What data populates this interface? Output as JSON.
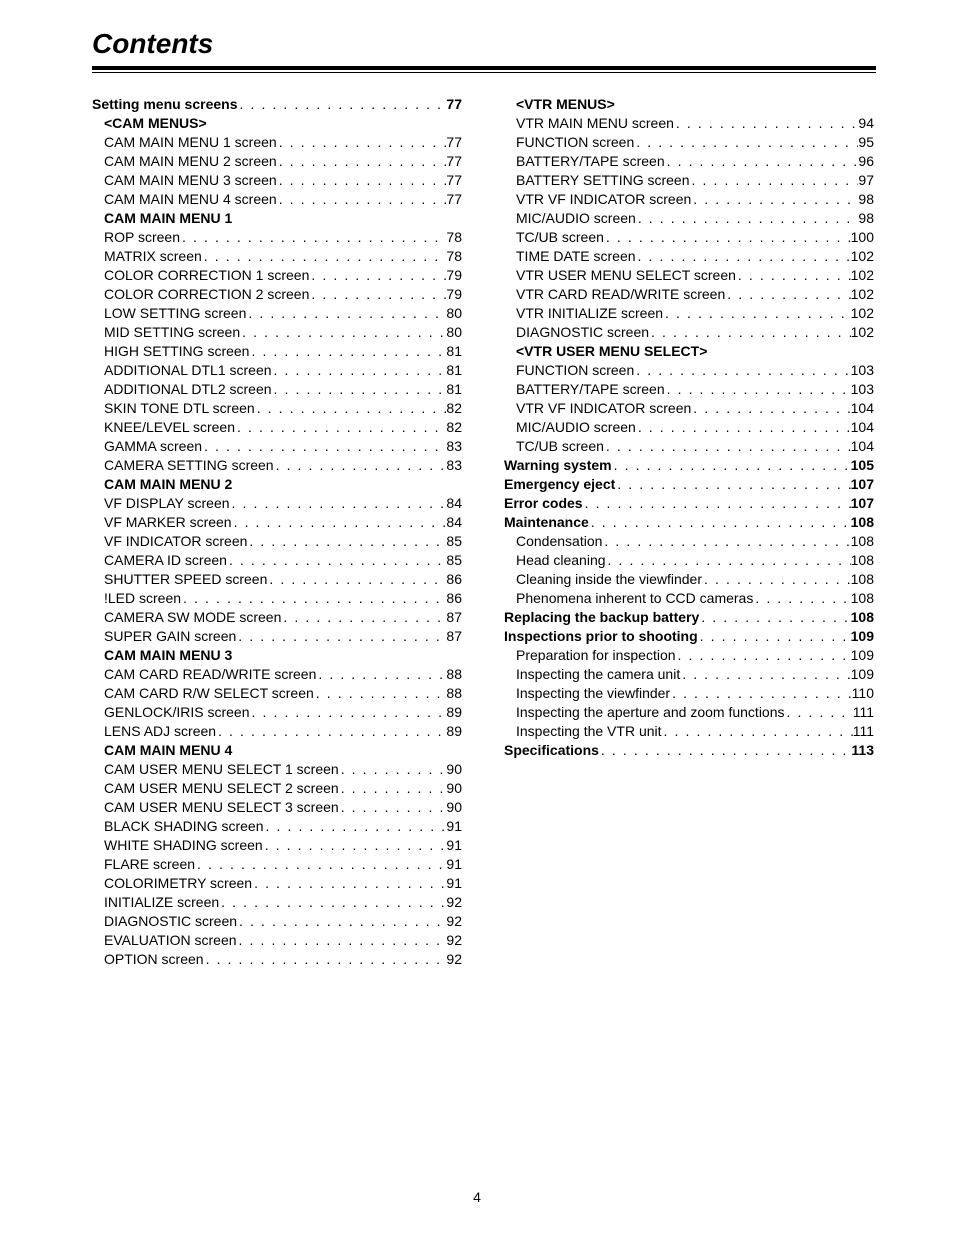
{
  "title": "Contents",
  "page_number": "4",
  "dot_fill": " . . . . . . . . . . . . . . . . . . . . . . . . . . . . . . . . . . . . . . . . . . . . . . . . . . . . . . . . . . . . . . . . . . . . . . . . . . . . . . . . . .",
  "columns": [
    [
      {
        "label": "Setting menu screens",
        "page": "77",
        "style": "bold"
      },
      {
        "label": "<CAM MENUS>",
        "style": "heading",
        "indent": 1
      },
      {
        "label": "CAM MAIN MENU 1 screen",
        "page": "77",
        "indent": 1
      },
      {
        "label": "CAM MAIN MENU 2 screen",
        "page": "77",
        "indent": 1
      },
      {
        "label": "CAM MAIN MENU 3 screen",
        "page": "77",
        "indent": 1
      },
      {
        "label": "CAM MAIN MENU 4 screen",
        "page": "77",
        "indent": 1
      },
      {
        "label": "CAM MAIN MENU 1",
        "style": "heading",
        "indent": 1
      },
      {
        "label": "ROP screen",
        "page": "78",
        "indent": 1
      },
      {
        "label": "MATRIX screen",
        "page": "78",
        "indent": 1
      },
      {
        "label": "COLOR CORRECTION 1 screen",
        "page": "79",
        "indent": 1
      },
      {
        "label": "COLOR CORRECTION 2 screen",
        "page": "79",
        "indent": 1
      },
      {
        "label": "LOW SETTING screen",
        "page": "80",
        "indent": 1
      },
      {
        "label": "MID SETTING screen",
        "page": "80",
        "indent": 1
      },
      {
        "label": "HIGH SETTING screen",
        "page": "81",
        "indent": 1
      },
      {
        "label": "ADDITIONAL DTL1 screen",
        "page": "81",
        "indent": 1
      },
      {
        "label": "ADDITIONAL DTL2 screen",
        "page": "81",
        "indent": 1
      },
      {
        "label": "SKIN TONE DTL screen",
        "page": "82",
        "indent": 1
      },
      {
        "label": "KNEE/LEVEL screen",
        "page": "82",
        "indent": 1
      },
      {
        "label": "GAMMA screen",
        "page": "83",
        "indent": 1
      },
      {
        "label": "CAMERA SETTING screen",
        "page": "83",
        "indent": 1
      },
      {
        "label": "CAM MAIN MENU 2",
        "style": "heading",
        "indent": 1
      },
      {
        "label": "VF DISPLAY screen",
        "page": "84",
        "indent": 1
      },
      {
        "label": "VF MARKER screen",
        "page": "84",
        "indent": 1
      },
      {
        "label": "VF INDICATOR screen",
        "page": "85",
        "indent": 1
      },
      {
        "label": "CAMERA ID screen",
        "page": "85",
        "indent": 1
      },
      {
        "label": "SHUTTER SPEED screen",
        "page": "86",
        "indent": 1
      },
      {
        "label": "!LED screen",
        "page": "86",
        "indent": 1
      },
      {
        "label": "CAMERA SW MODE screen",
        "page": "87",
        "indent": 1
      },
      {
        "label": "SUPER GAIN screen",
        "page": "87",
        "indent": 1
      },
      {
        "label": "CAM MAIN MENU 3",
        "style": "heading",
        "indent": 1
      },
      {
        "label": "CAM CARD READ/WRITE screen",
        "page": "88",
        "indent": 1
      },
      {
        "label": "CAM CARD R/W SELECT screen",
        "page": "88",
        "indent": 1
      },
      {
        "label": "GENLOCK/IRIS screen",
        "page": "89",
        "indent": 1
      },
      {
        "label": "LENS ADJ screen",
        "page": "89",
        "indent": 1
      },
      {
        "label": "CAM MAIN MENU 4",
        "style": "heading",
        "indent": 1
      },
      {
        "label": "CAM USER MENU SELECT 1 screen",
        "page": "90",
        "indent": 1
      },
      {
        "label": "CAM USER MENU SELECT 2 screen",
        "page": "90",
        "indent": 1
      },
      {
        "label": "CAM USER MENU SELECT 3 screen",
        "page": "90",
        "indent": 1
      },
      {
        "label": "BLACK SHADING screen",
        "page": "91",
        "indent": 1
      },
      {
        "label": "WHITE SHADING screen",
        "page": "91",
        "indent": 1
      },
      {
        "label": "FLARE screen",
        "page": "91",
        "indent": 1
      },
      {
        "label": "COLORIMETRY screen",
        "page": "91",
        "indent": 1
      },
      {
        "label": "INITIALIZE screen",
        "page": "92",
        "indent": 1
      },
      {
        "label": "DIAGNOSTIC screen",
        "page": "92",
        "indent": 1
      },
      {
        "label": "EVALUATION screen",
        "page": "92",
        "indent": 1
      },
      {
        "label": "OPTION screen",
        "page": "92",
        "indent": 1
      }
    ],
    [
      {
        "label": "<VTR MENUS>",
        "style": "heading",
        "indent": 1
      },
      {
        "label": "VTR MAIN MENU screen",
        "page": "94",
        "indent": 1
      },
      {
        "label": "FUNCTION screen",
        "page": "95",
        "indent": 1
      },
      {
        "label": "BATTERY/TAPE screen",
        "page": "96",
        "indent": 1
      },
      {
        "label": "BATTERY SETTING screen",
        "page": "97",
        "indent": 1
      },
      {
        "label": "VTR VF INDICATOR screen",
        "page": "98",
        "indent": 1
      },
      {
        "label": "MIC/AUDIO screen",
        "page": "98",
        "indent": 1
      },
      {
        "label": "TC/UB screen",
        "page": "100",
        "indent": 1
      },
      {
        "label": "TIME DATE screen",
        "page": "102",
        "indent": 1
      },
      {
        "label": "VTR USER MENU SELECT screen",
        "page": "102",
        "indent": 1
      },
      {
        "label": "VTR CARD READ/WRITE screen",
        "page": "102",
        "indent": 1
      },
      {
        "label": "VTR INITIALIZE screen",
        "page": "102",
        "indent": 1
      },
      {
        "label": "DIAGNOSTIC screen",
        "page": "102",
        "indent": 1
      },
      {
        "label": "<VTR USER MENU SELECT>",
        "style": "heading",
        "indent": 1
      },
      {
        "label": "FUNCTION screen",
        "page": "103",
        "indent": 1
      },
      {
        "label": "BATTERY/TAPE screen",
        "page": "103",
        "indent": 1
      },
      {
        "label": "VTR VF INDICATOR screen",
        "page": "104",
        "indent": 1
      },
      {
        "label": "MIC/AUDIO screen",
        "page": "104",
        "indent": 1
      },
      {
        "label": "TC/UB screen",
        "page": "104",
        "indent": 1
      },
      {
        "label": "Warning system",
        "page": "105",
        "style": "bold"
      },
      {
        "label": "Emergency eject",
        "page": "107",
        "style": "bold"
      },
      {
        "label": "Error codes",
        "page": "107",
        "style": "bold"
      },
      {
        "label": "Maintenance",
        "page": "108",
        "style": "bold"
      },
      {
        "label": "Condensation",
        "page": "108",
        "indent": 1
      },
      {
        "label": "Head cleaning",
        "page": "108",
        "indent": 1
      },
      {
        "label": "Cleaning inside the viewfinder",
        "page": "108",
        "indent": 1
      },
      {
        "label": "Phenomena inherent to CCD cameras",
        "page": "108",
        "indent": 1
      },
      {
        "label": "Replacing the backup battery",
        "page": "108",
        "style": "bold"
      },
      {
        "label": "Inspections prior to shooting",
        "page": "109",
        "style": "bold"
      },
      {
        "label": "Preparation for inspection",
        "page": "109",
        "indent": 1
      },
      {
        "label": "Inspecting the camera unit",
        "page": "109",
        "indent": 1
      },
      {
        "label": "Inspecting the viewfinder",
        "page": "110",
        "indent": 1
      },
      {
        "label": "Inspecting the aperture and zoom functions",
        "page": "111",
        "indent": 1
      },
      {
        "label": "Inspecting the VTR unit",
        "page": "111",
        "indent": 1
      },
      {
        "label": "Specifications",
        "page": "113",
        "style": "bold"
      }
    ]
  ]
}
